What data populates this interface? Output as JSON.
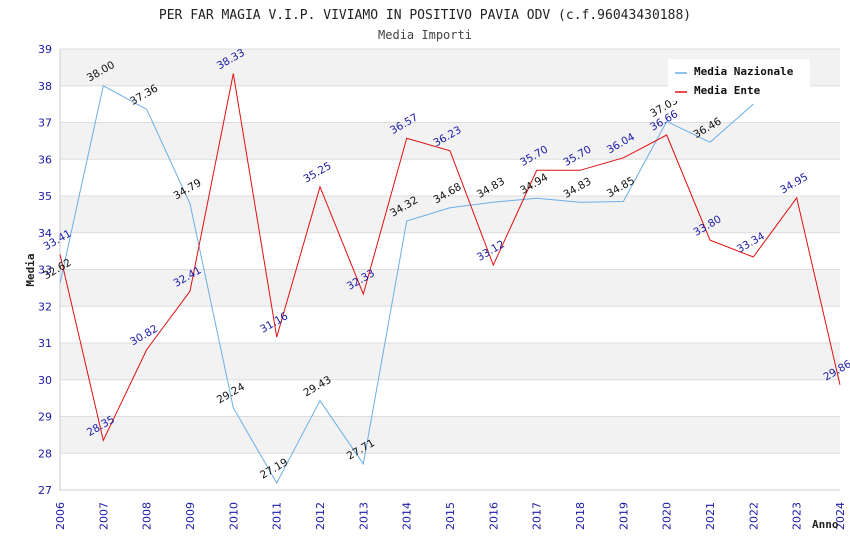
{
  "chart_data": {
    "type": "line",
    "title": "PER FAR MAGIA V.I.P. VIVIAMO IN POSITIVO PAVIA ODV (c.f.96043430188)",
    "subtitle": "Media Importi",
    "xlabel": "Anno",
    "ylabel": "Media",
    "ylim": [
      27,
      39
    ],
    "grid": true,
    "legend_position": "top-right",
    "x": [
      "2006",
      "2007",
      "2008",
      "2009",
      "2010",
      "2011",
      "2012",
      "2013",
      "2014",
      "2015",
      "2016",
      "2017",
      "2018",
      "2019",
      "2020",
      "2021",
      "2022",
      "2023",
      "2024"
    ],
    "yticks": [
      "27",
      "28",
      "29",
      "30",
      "31",
      "32",
      "33",
      "34",
      "35",
      "36",
      "37",
      "38",
      "39"
    ],
    "series": [
      {
        "name": "Media Nazionale",
        "color": "#6aaee8",
        "label_color": "#111111",
        "values": [
          32.62,
          38.0,
          37.36,
          34.79,
          29.24,
          27.19,
          29.43,
          27.71,
          34.32,
          34.68,
          34.83,
          34.94,
          34.83,
          34.85,
          37.03,
          36.46,
          37.5,
          null,
          null
        ],
        "labels": [
          "32.62",
          "38.00",
          "37.36",
          "34.79",
          "29.24",
          "27.19",
          "29.43",
          "27.71",
          "34.32",
          "34.68",
          "34.83",
          "34.94",
          "34.83",
          "34.85",
          "37.03",
          "36.46",
          "",
          "",
          ""
        ]
      },
      {
        "name": "Media Ente",
        "color": "#e01010",
        "label_color": "#1a1aa8",
        "values": [
          33.41,
          28.35,
          30.82,
          32.41,
          38.33,
          31.16,
          35.25,
          32.33,
          36.57,
          36.23,
          33.12,
          35.7,
          35.7,
          36.04,
          36.66,
          33.8,
          33.34,
          34.95,
          29.86
        ],
        "labels": [
          "33.41",
          "28.35",
          "30.82",
          "32.41",
          "38.33",
          "31.16",
          "35.25",
          "32.33",
          "36.57",
          "36.23",
          "33.12",
          "35.70",
          "35.70",
          "36.04",
          "36.66",
          "33.80",
          "33.34",
          "34.95",
          "29.86"
        ]
      }
    ]
  }
}
